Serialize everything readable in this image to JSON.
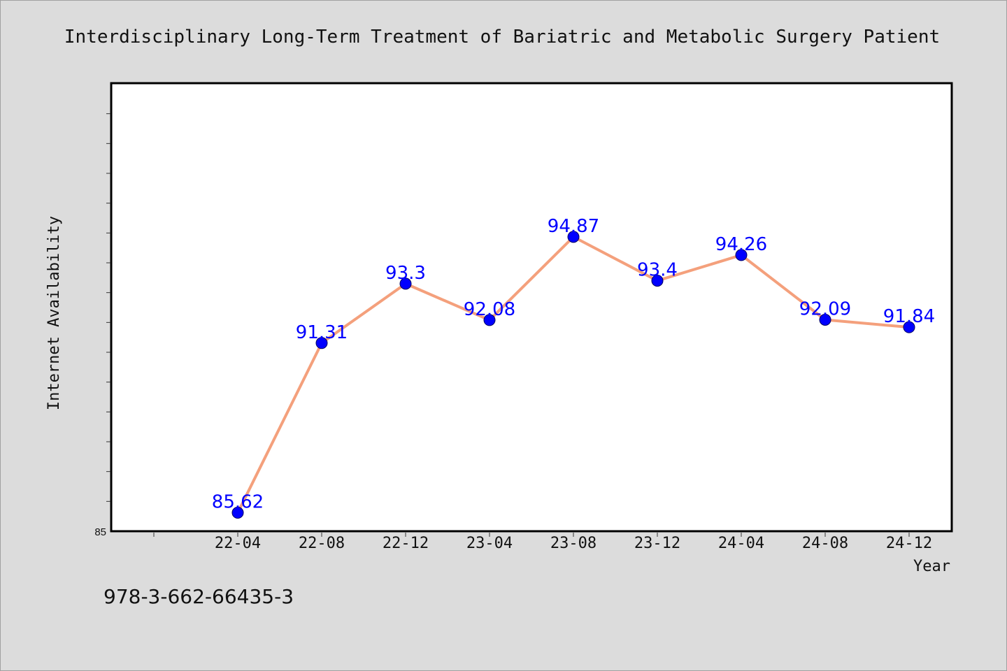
{
  "chart_data": {
    "type": "line",
    "title": "Interdisciplinary Long-Term Treatment of Bariatric and Metabolic Surgery Patient",
    "xlabel": "Year",
    "ylabel": "Internet Availability",
    "categories": [
      "22-04",
      "22-08",
      "22-12",
      "23-04",
      "23-08",
      "23-12",
      "24-04",
      "24-08",
      "24-12"
    ],
    "series": [
      {
        "values": [
          85.62,
          91.31,
          93.3,
          92.08,
          94.87,
          93.4,
          94.26,
          92.09,
          91.84
        ]
      }
    ],
    "data_labels": [
      "85.62",
      "91.31",
      "93.3",
      "92.08",
      "94.87",
      "93.4",
      "94.26",
      "92.09",
      "91.84"
    ],
    "ylim": [
      85,
      100
    ],
    "y_tick_labels": [
      "85"
    ],
    "y_minor_step": 1,
    "grid": false,
    "line_color": "#f4a07c",
    "marker_color": "#0000ff",
    "label_color": "#0000ff"
  },
  "footer": {
    "text": "978-3-662-66435-3"
  }
}
